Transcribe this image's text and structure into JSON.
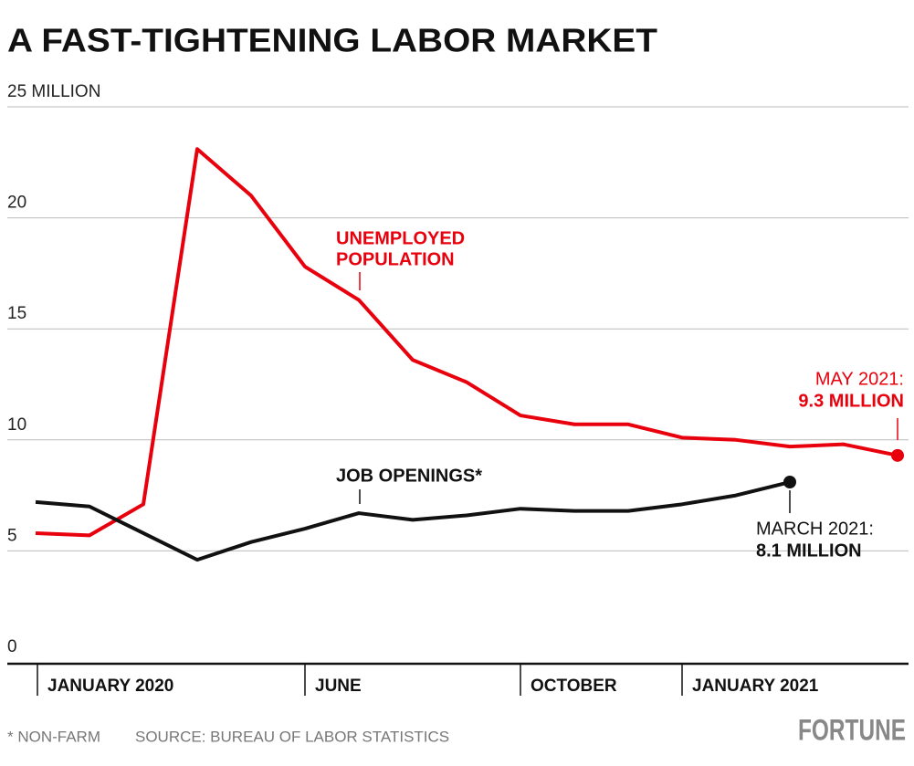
{
  "chart_data": {
    "type": "line",
    "title": "A FAST-TIGHTENING LABOR MARKET",
    "categories": [
      "JANUARY 2020",
      null,
      null,
      null,
      null,
      "JUNE",
      null,
      null,
      null,
      "OCTOBER",
      null,
      null,
      "JANUARY 2021",
      null,
      null,
      null,
      null
    ],
    "series": [
      {
        "label": [
          "UNEMPLOYED",
          "POPULATION"
        ],
        "color": "#e8000d",
        "values": [
          5.8,
          5.7,
          7.1,
          23.1,
          21.0,
          17.8,
          16.3,
          13.6,
          12.6,
          11.1,
          10.7,
          10.7,
          10.1,
          10.0,
          9.7,
          9.8,
          9.3
        ],
        "end_label": [
          "MAY 2021:",
          "9.3 MILLION"
        ]
      },
      {
        "label": [
          "JOB OPENINGS*"
        ],
        "color": "#111111",
        "values": [
          7.2,
          7.0,
          5.8,
          4.6,
          5.4,
          6.0,
          6.7,
          6.4,
          6.6,
          6.9,
          6.8,
          6.8,
          7.1,
          7.5,
          8.1,
          null,
          null
        ],
        "end_label": [
          "MARCH 2021:",
          "8.1 MILLION"
        ]
      }
    ],
    "ylim": [
      0,
      25
    ],
    "yticks": [
      0,
      5,
      10,
      15,
      20,
      {
        "value": 25,
        "label": "25 MILLION"
      }
    ],
    "grid": true,
    "footnote": "* NON-FARM",
    "source": "SOURCE: BUREAU OF LABOR STATISTICS",
    "brand": "FORTUNE"
  }
}
